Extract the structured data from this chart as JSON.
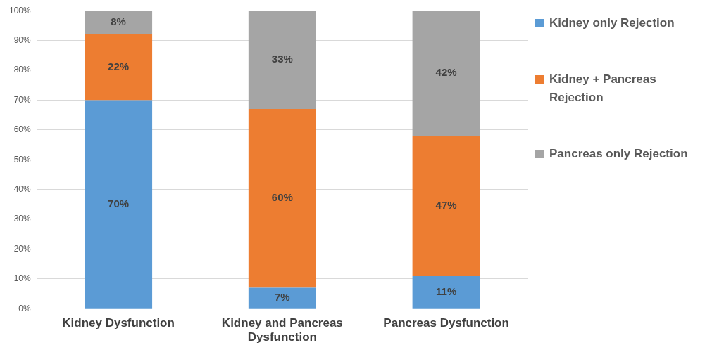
{
  "chart_data": {
    "type": "bar",
    "stacked": true,
    "categories": [
      "Kidney Dysfunction",
      "Kidney and Pancreas Dysfunction",
      "Pancreas Dysfunction"
    ],
    "series": [
      {
        "name": "Kidney only Rejection",
        "color": "#5b9bd5",
        "values": [
          70,
          7,
          11
        ],
        "value_labels": [
          "70%",
          "7%",
          "11%"
        ]
      },
      {
        "name": "Kidney + Pancreas Rejection",
        "color": "#ed7d31",
        "values": [
          22,
          60,
          47
        ],
        "value_labels": [
          "22%",
          "60%",
          "47%"
        ]
      },
      {
        "name": "Pancreas only Rejection",
        "color": "#a5a5a5",
        "values": [
          8,
          33,
          42
        ],
        "value_labels": [
          "8%",
          "33%",
          "42%"
        ]
      }
    ],
    "ylim": [
      0,
      100
    ],
    "yticks": [
      {
        "value": 0,
        "label": "0%"
      },
      {
        "value": 10,
        "label": "10%"
      },
      {
        "value": 20,
        "label": "20%"
      },
      {
        "value": 30,
        "label": "30%"
      },
      {
        "value": 40,
        "label": "40%"
      },
      {
        "value": 50,
        "label": "50%"
      },
      {
        "value": 60,
        "label": "60%"
      },
      {
        "value": 70,
        "label": "70%"
      },
      {
        "value": 80,
        "label": "80%"
      },
      {
        "value": 90,
        "label": "90%"
      },
      {
        "value": 100,
        "label": "100%"
      }
    ],
    "grid": "y",
    "legend": "right"
  }
}
